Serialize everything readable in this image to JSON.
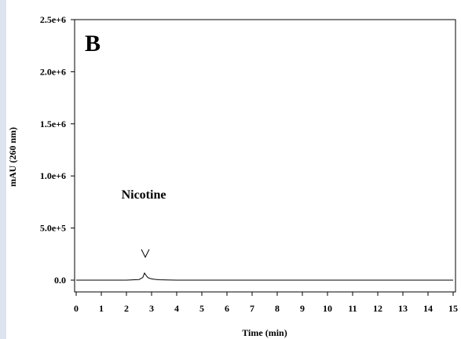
{
  "chart_data": {
    "type": "line",
    "panel_label": "B",
    "xlabel": "Time (min)",
    "ylabel": "mAU (260 nm)",
    "xlim": [
      0,
      15
    ],
    "ylim": [
      0,
      2500000
    ],
    "x_ticks": [
      0,
      1,
      2,
      3,
      4,
      5,
      6,
      7,
      8,
      9,
      10,
      11,
      12,
      13,
      14,
      15
    ],
    "x_tick_labels": [
      "0",
      "1",
      "2",
      "3",
      "4",
      "5",
      "6",
      "7",
      "8",
      "9",
      "10",
      "11",
      "12",
      "13",
      "14",
      "15"
    ],
    "y_ticks": [
      0,
      500000,
      1000000,
      1500000,
      2000000,
      2500000
    ],
    "y_tick_labels": [
      "0.0",
      "5.0e+5",
      "1.0e+6",
      "1.5e+6",
      "2.0e+6",
      "2.5e+6"
    ],
    "grid": false,
    "series": [
      {
        "x": [
          0,
          2.0,
          2.5,
          2.65,
          2.72,
          2.78,
          2.85,
          2.95,
          3.1,
          3.3,
          3.6,
          4.0,
          15
        ],
        "y": [
          0,
          0,
          6000,
          25000,
          68000,
          45000,
          25000,
          15000,
          8000,
          4000,
          1500,
          0,
          0
        ]
      }
    ],
    "annotations": [
      {
        "text": "Nicotine",
        "x": 2.75,
        "y": 820000
      },
      {
        "marker": "V",
        "x": 2.75,
        "y": 220000
      }
    ]
  }
}
